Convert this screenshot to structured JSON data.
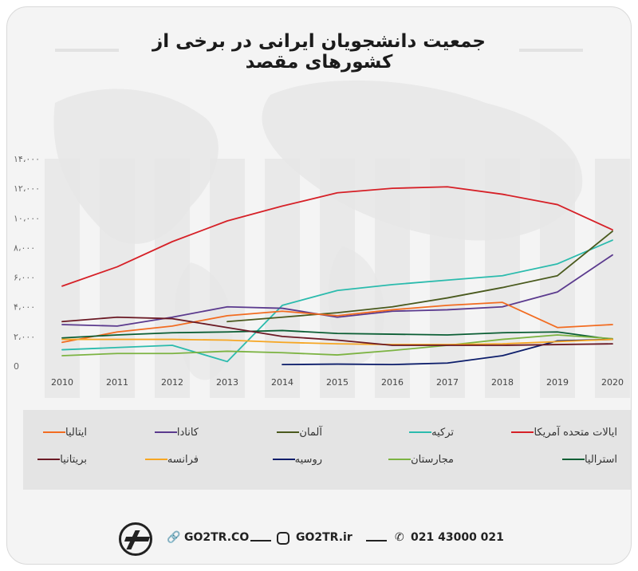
{
  "title": "جمعیت دانشجویان ایرانی در برخی از کشورهای مقصد",
  "footer": {
    "site1": "GO2TR.CO",
    "site2": "GO2TR.ir",
    "phone": "021 43000 021"
  },
  "chart_data": {
    "type": "line",
    "title": "جمعیت دانشجویان ایرانی در برخی از کشورهای مقصد",
    "xlabel": "",
    "ylabel": "",
    "x": [
      "2010",
      "2011",
      "2012",
      "2013",
      "2014",
      "2015",
      "2016",
      "2017",
      "2018",
      "2019",
      "2020"
    ],
    "y_ticks": [
      "0",
      "۲،۰۰۰",
      "۴،۰۰۰",
      "۶،۰۰۰",
      "۸،۰۰۰",
      "۱۰،۰۰۰",
      "۱۲،۰۰۰",
      "۱۴،۰۰۰"
    ],
    "x_tick_labels": [
      "2010",
      "2011",
      "2012",
      "2013",
      "2014",
      "2015",
      "2016",
      "2017",
      "2018",
      "2019",
      "2020"
    ],
    "ylim": [
      0,
      14000
    ],
    "grid": false,
    "legend_position": "bottom",
    "series": [
      {
        "name": "ایالات متحده آمریکا",
        "color": "#d62027",
        "values": [
          5400,
          6700,
          8400,
          9800,
          10800,
          11700,
          12000,
          12100,
          11600,
          10900,
          9200
        ]
      },
      {
        "name": "ترکیه",
        "color": "#2bbbad",
        "values": [
          1100,
          1250,
          1400,
          300,
          4100,
          5100,
          5500,
          5800,
          6100,
          6900,
          8500
        ]
      },
      {
        "name": "آلمان",
        "color": "#4a5a1e",
        "values": [
          null,
          null,
          null,
          3000,
          3300,
          3600,
          4000,
          4600,
          5300,
          6100,
          9100
        ]
      },
      {
        "name": "کانادا",
        "color": "#5b3a8e",
        "values": [
          2800,
          2700,
          3300,
          4000,
          3900,
          3300,
          3700,
          3800,
          4000,
          5000,
          7500
        ]
      },
      {
        "name": "ایتالیا",
        "color": "#f26c21",
        "values": [
          1600,
          2300,
          2700,
          3400,
          3700,
          3400,
          3800,
          4100,
          4300,
          2600,
          2800
        ]
      },
      {
        "name": "استرالیا",
        "color": "#0b5e34",
        "values": [
          1900,
          2100,
          2250,
          2300,
          2400,
          2200,
          2150,
          2100,
          2250,
          2300,
          1800
        ]
      },
      {
        "name": "مجارستان",
        "color": "#7cb342",
        "values": [
          700,
          850,
          850,
          1000,
          900,
          750,
          1050,
          1400,
          1800,
          2100,
          1850
        ]
      },
      {
        "name": "روسیه",
        "color": "#0d1e6b",
        "values": [
          null,
          null,
          null,
          null,
          100,
          130,
          100,
          200,
          700,
          1700,
          1800
        ]
      },
      {
        "name": "فرانسه",
        "color": "#f6a623",
        "values": [
          1800,
          1800,
          1800,
          1750,
          1600,
          1500,
          1450,
          1450,
          1500,
          1650,
          1800
        ]
      },
      {
        "name": "بریتانیا",
        "color": "#6b1a25",
        "values": [
          3000,
          3300,
          3200,
          2600,
          2000,
          1750,
          1400,
          1400,
          1400,
          1450,
          1500
        ]
      }
    ]
  }
}
